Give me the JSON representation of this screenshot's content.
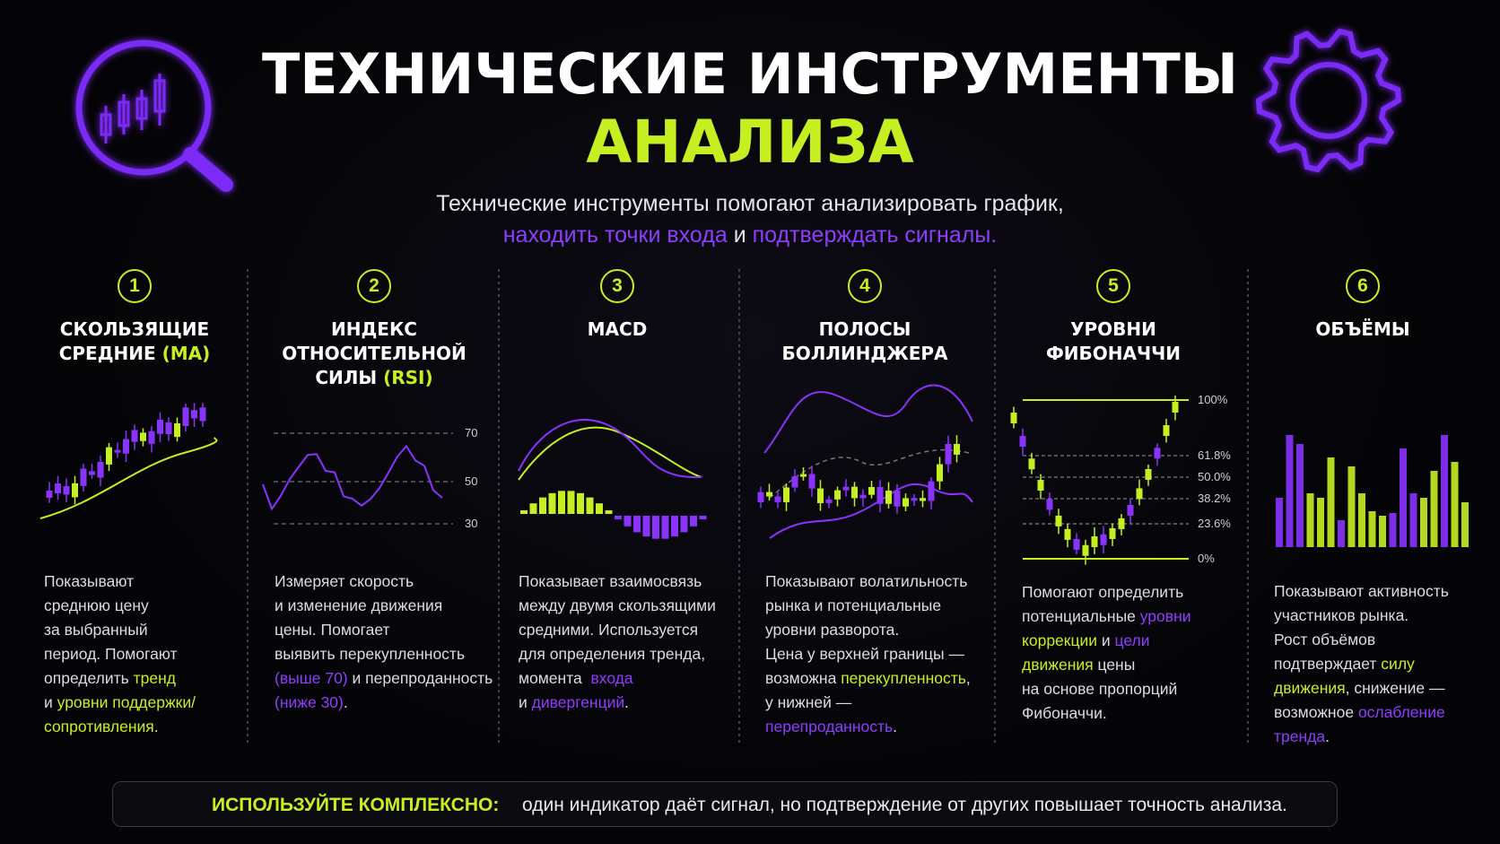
{
  "header": {
    "title_line1": "ТЕХНИЧЕСКИЕ ИНСТРУМЕНТЫ",
    "title_line2": "АНАЛИЗА",
    "subtitle": [
      [
        "Технические инструменты помогают анализировать график,"
      ],
      [
        {
          "text": "находить точки входа",
          "accent": "purple"
        },
        " и ",
        {
          "text": "подтверждать сигналы.",
          "accent": "purple"
        }
      ]
    ]
  },
  "columns": [
    {
      "number": "1",
      "heading": [
        [
          "СКОЛЬЗЯЩИЕ"
        ],
        [
          "СРЕДНИЕ ",
          {
            "text": "(MA)",
            "accent": "green"
          }
        ]
      ],
      "description": [
        [
          "Показывают"
        ],
        [
          "среднюю цену"
        ],
        [
          "за выбранный"
        ],
        [
          "период. Помогают"
        ],
        [
          "определить ",
          {
            "text": "тренд",
            "accent": "green"
          }
        ],
        [
          "и ",
          {
            "text": "уровни поддержки/",
            "accent": "green"
          }
        ],
        [
          {
            "text": "сопротивления.",
            "accent": "green"
          }
        ]
      ]
    },
    {
      "number": "2",
      "heading": [
        [
          "ИНДЕКС"
        ],
        [
          "ОТНОСИТЕЛЬНОЙ"
        ],
        [
          "СИЛЫ ",
          {
            "text": "(RSI)",
            "accent": "green"
          }
        ]
      ],
      "chart_labels": [
        "70",
        "50",
        "30"
      ],
      "description": [
        [
          "Измеряет скорость"
        ],
        [
          "и изменение движения"
        ],
        [
          "цены. Помогает"
        ],
        [
          "выявить перекупленность"
        ],
        [
          {
            "text": "(выше 70)",
            "accent": "purple"
          },
          " и перепроданность"
        ],
        [
          {
            "text": "(ниже 30)",
            "accent": "purple"
          },
          "."
        ]
      ]
    },
    {
      "number": "3",
      "heading": [
        [
          "MACD"
        ]
      ],
      "description": [
        [
          "Показывает взаимосвязь"
        ],
        [
          "между двумя скользящими"
        ],
        [
          "средними. Используется"
        ],
        [
          "для определения тренда,"
        ],
        [
          "момента  ",
          {
            "text": "входа",
            "accent": "purple"
          }
        ],
        [
          "и ",
          {
            "text": "дивергенций",
            "accent": "purple"
          },
          "."
        ]
      ]
    },
    {
      "number": "4",
      "heading": [
        [
          "ПОЛОСЫ"
        ],
        [
          "БОЛЛИНДЖЕРА"
        ]
      ],
      "description": [
        [
          "Показывают волатильность"
        ],
        [
          "рынка и потенциальные"
        ],
        [
          "уровни разворота."
        ],
        [
          "Цена у верхней границы —"
        ],
        [
          "возможна ",
          {
            "text": "перекупленность",
            "accent": "green"
          },
          ","
        ],
        [
          "у нижней —"
        ],
        [
          {
            "text": "перепроданность",
            "accent": "purple"
          },
          "."
        ]
      ]
    },
    {
      "number": "5",
      "heading": [
        [
          "УРОВНИ"
        ],
        [
          "ФИБОНАЧЧИ"
        ]
      ],
      "chart_labels": [
        "100%",
        "61.8%",
        "50.0%",
        "38.2%",
        "23.6%",
        "0%"
      ],
      "description": [
        [
          "Помогают определить"
        ],
        [
          "потенциальные ",
          {
            "text": "уровни",
            "accent": "purple"
          }
        ],
        [
          {
            "text": "коррекции",
            "accent": "green"
          },
          " и ",
          {
            "text": "цели",
            "accent": "purple"
          }
        ],
        [
          {
            "text": "движения",
            "accent": "green"
          },
          " цены"
        ],
        [
          "на основе пропорций"
        ],
        [
          "Фибоначчи."
        ]
      ]
    },
    {
      "number": "6",
      "heading": [
        [
          "ОБЪЁМЫ"
        ]
      ],
      "description": [
        [
          "Показывают активность"
        ],
        [
          "участников рынка."
        ],
        [
          "Рост объёмов"
        ],
        [
          "подтверждает ",
          {
            "text": "силу",
            "accent": "green"
          }
        ],
        [
          {
            "text": "движения",
            "accent": "green"
          },
          ", снижение —"
        ],
        [
          "возможное ",
          {
            "text": "ослабление",
            "accent": "purple"
          }
        ],
        [
          {
            "text": "тренда",
            "accent": "purple"
          },
          "."
        ]
      ]
    }
  ],
  "footer": {
    "lead": "ИСПОЛЬЗУЙТЕ КОМПЛЕКСНО:",
    "text": "один индикатор даёт сигнал, но подтверждение от других повышает точность анализа."
  }
}
